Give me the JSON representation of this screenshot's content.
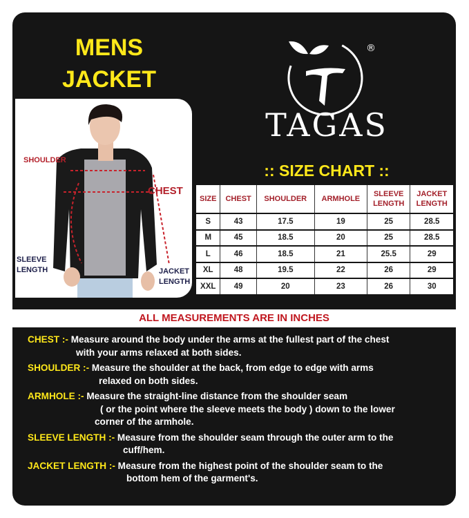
{
  "title": {
    "line1": "MENS",
    "line2": "JACKET"
  },
  "brand": {
    "name": "TAGAS",
    "registered": "®"
  },
  "photo_labels": {
    "shoulder": "SHOULDER",
    "chest": "CHEST",
    "sleeve_length": [
      "SLEEVE",
      "LENGTH"
    ],
    "jacket_length": [
      "JACKET",
      "LENGTH"
    ]
  },
  "size_chart": {
    "heading": ":: SIZE CHART ::",
    "columns": [
      [
        "SIZE"
      ],
      [
        "CHEST"
      ],
      [
        "SHOULDER"
      ],
      [
        "ARMHOLE"
      ],
      [
        "SLEEVE",
        "LENGTH"
      ],
      [
        "JACKET",
        "LENGTH"
      ]
    ],
    "rows": [
      [
        "S",
        "43",
        "17.5",
        "19",
        "25",
        "28.5"
      ],
      [
        "M",
        "45",
        "18.5",
        "20",
        "25",
        "28.5"
      ],
      [
        "L",
        "46",
        "18.5",
        "21",
        "25.5",
        "29"
      ],
      [
        "XL",
        "48",
        "19.5",
        "22",
        "26",
        "29"
      ],
      [
        "XXL",
        "49",
        "20",
        "23",
        "26",
        "30"
      ]
    ]
  },
  "units_note": "ALL MEASUREMENTS ARE IN INCHES",
  "definitions": [
    {
      "term": "CHEST  :-",
      "lines": [
        "Measure around the body under the arms at the fullest part of the chest",
        "with your arms relaxed at both sides."
      ]
    },
    {
      "term": "SHOULDER :-",
      "lines": [
        "Measure the shoulder at the back, from edge to edge with arms",
        "relaxed on both sides."
      ]
    },
    {
      "term": "ARMHOLE :-",
      "lines": [
        "Measure the straight-line distance from the shoulder seam",
        "( or the point where the sleeve meets the body ) down to the lower",
        "corner of the armhole."
      ]
    },
    {
      "term": "SLEEVE LENGTH :-",
      "lines": [
        "Measure from the shoulder seam through the outer arm to the",
        "cuff/hem."
      ]
    },
    {
      "term": "JACKET LENGTH :-",
      "lines": [
        "Measure from the highest point of the shoulder seam to the",
        "bottom hem of the garment's."
      ]
    }
  ],
  "colors": {
    "background": "#151515",
    "title_yellow": "#ffe81a",
    "header_red": "#a3202a",
    "note_red": "#c0171f"
  }
}
